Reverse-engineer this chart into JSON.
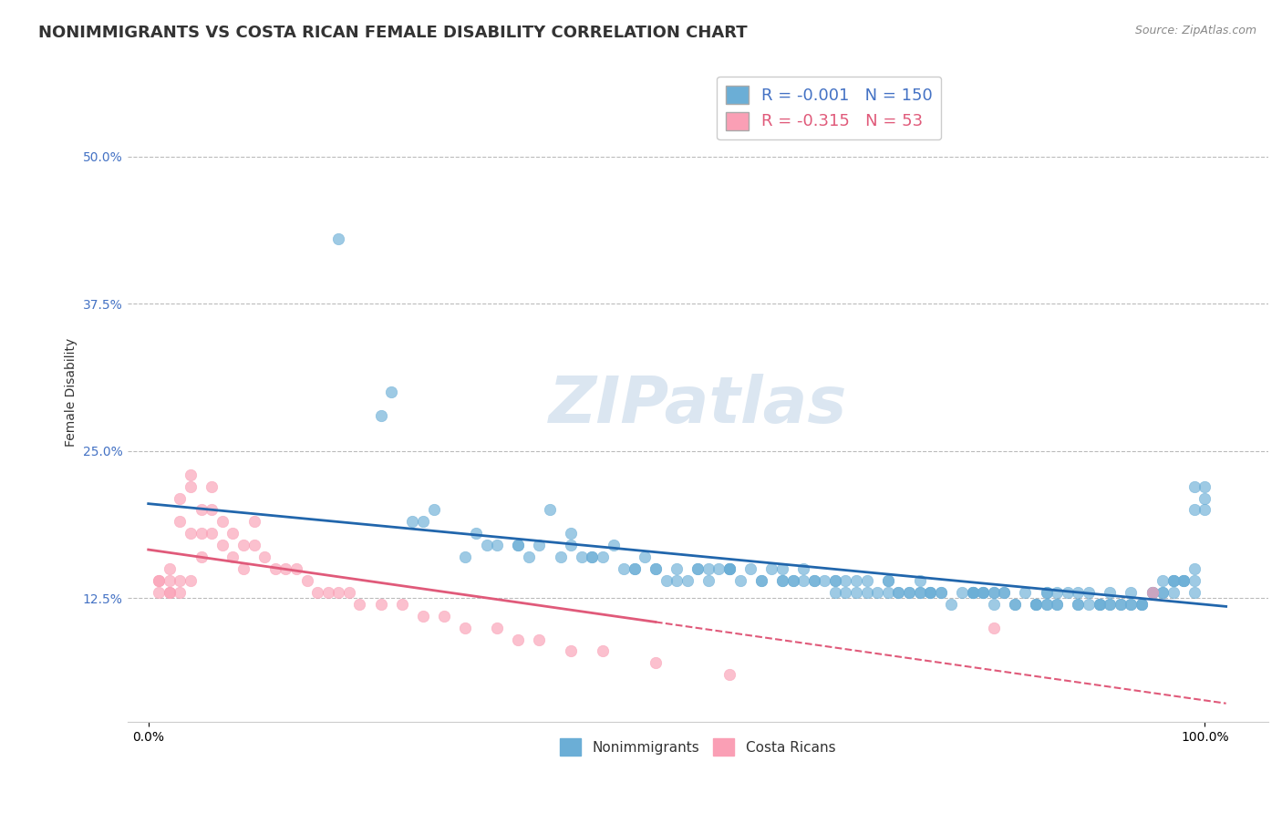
{
  "title": "NONIMMIGRANTS VS COSTA RICAN FEMALE DISABILITY CORRELATION CHART",
  "source_text": "Source: ZipAtlas.com",
  "ylabel": "Female Disability",
  "x_tick_labels": [
    "0.0%",
    "100.0%"
  ],
  "y_tick_labels": [
    "12.5%",
    "25.0%",
    "37.5%",
    "50.0%"
  ],
  "y_tick_values": [
    0.125,
    0.25,
    0.375,
    0.5
  ],
  "xlim": [
    -0.02,
    1.06
  ],
  "ylim": [
    0.02,
    0.58
  ],
  "legend_blue_r": "-0.001",
  "legend_blue_n": "150",
  "legend_pink_r": "-0.315",
  "legend_pink_n": "53",
  "blue_color": "#6baed6",
  "pink_color": "#fa9fb5",
  "blue_line_color": "#2166ac",
  "pink_line_color": "#e05a7a",
  "watermark_text": "ZIPatlas",
  "title_fontsize": 13,
  "label_fontsize": 10,
  "tick_fontsize": 10,
  "source_fontsize": 9,
  "blue_scatter_x": [
    0.18,
    0.23,
    0.22,
    0.27,
    0.26,
    0.31,
    0.35,
    0.38,
    0.36,
    0.4,
    0.42,
    0.44,
    0.46,
    0.47,
    0.48,
    0.5,
    0.52,
    0.53,
    0.55,
    0.57,
    0.58,
    0.59,
    0.6,
    0.62,
    0.63,
    0.64,
    0.65,
    0.66,
    0.67,
    0.68,
    0.69,
    0.7,
    0.71,
    0.72,
    0.73,
    0.74,
    0.75,
    0.76,
    0.77,
    0.78,
    0.79,
    0.8,
    0.81,
    0.82,
    0.83,
    0.84,
    0.85,
    0.86,
    0.87,
    0.88,
    0.89,
    0.9,
    0.91,
    0.92,
    0.93,
    0.94,
    0.95,
    0.96,
    0.97,
    0.98,
    0.99,
    1.0,
    0.3,
    0.33,
    0.37,
    0.41,
    0.43,
    0.45,
    0.49,
    0.51,
    0.54,
    0.56,
    0.61,
    0.74,
    0.78,
    0.82,
    0.86,
    0.9,
    0.94,
    0.97,
    0.35,
    0.4,
    0.48,
    0.55,
    0.6,
    0.65,
    0.7,
    0.75,
    0.8,
    0.85,
    0.88,
    0.92,
    0.95,
    0.98,
    1.0,
    0.25,
    0.32,
    0.39,
    0.46,
    0.53,
    0.6,
    0.67,
    0.73,
    0.79,
    0.84,
    0.89,
    0.93,
    0.96,
    0.99,
    0.5,
    0.55,
    0.62,
    0.68,
    0.74,
    0.8,
    0.86,
    0.91,
    0.95,
    0.98,
    1.0,
    0.42,
    0.52,
    0.61,
    0.7,
    0.78,
    0.85,
    0.91,
    0.96,
    0.99,
    0.65,
    0.72,
    0.79,
    0.85,
    0.9,
    0.94,
    0.97,
    0.99,
    0.58,
    0.66,
    0.73,
    0.81,
    0.88,
    0.93,
    0.97,
    0.99,
    0.55,
    0.63,
    0.71,
    0.78,
    0.84
  ],
  "blue_scatter_y": [
    0.43,
    0.3,
    0.28,
    0.2,
    0.19,
    0.18,
    0.17,
    0.2,
    0.16,
    0.18,
    0.16,
    0.17,
    0.15,
    0.16,
    0.15,
    0.14,
    0.15,
    0.14,
    0.15,
    0.15,
    0.14,
    0.15,
    0.14,
    0.15,
    0.14,
    0.14,
    0.13,
    0.14,
    0.13,
    0.13,
    0.13,
    0.13,
    0.13,
    0.13,
    0.14,
    0.13,
    0.13,
    0.12,
    0.13,
    0.13,
    0.13,
    0.12,
    0.13,
    0.12,
    0.13,
    0.12,
    0.13,
    0.12,
    0.13,
    0.12,
    0.13,
    0.12,
    0.13,
    0.12,
    0.13,
    0.12,
    0.13,
    0.14,
    0.13,
    0.14,
    0.13,
    0.21,
    0.16,
    0.17,
    0.17,
    0.16,
    0.16,
    0.15,
    0.14,
    0.14,
    0.15,
    0.14,
    0.14,
    0.13,
    0.13,
    0.12,
    0.13,
    0.12,
    0.12,
    0.14,
    0.17,
    0.17,
    0.15,
    0.15,
    0.15,
    0.14,
    0.14,
    0.13,
    0.13,
    0.12,
    0.13,
    0.12,
    0.13,
    0.14,
    0.22,
    0.19,
    0.17,
    0.16,
    0.15,
    0.15,
    0.14,
    0.14,
    0.13,
    0.13,
    0.12,
    0.12,
    0.12,
    0.13,
    0.14,
    0.15,
    0.15,
    0.14,
    0.14,
    0.13,
    0.13,
    0.12,
    0.12,
    0.13,
    0.14,
    0.2,
    0.16,
    0.15,
    0.14,
    0.14,
    0.13,
    0.13,
    0.12,
    0.13,
    0.15,
    0.14,
    0.13,
    0.13,
    0.12,
    0.12,
    0.12,
    0.14,
    0.2,
    0.14,
    0.13,
    0.13,
    0.13,
    0.12,
    0.12,
    0.14,
    0.22,
    0.15,
    0.14,
    0.13,
    0.13,
    0.12
  ],
  "pink_scatter_x": [
    0.01,
    0.01,
    0.01,
    0.02,
    0.02,
    0.02,
    0.02,
    0.03,
    0.03,
    0.03,
    0.03,
    0.04,
    0.04,
    0.04,
    0.04,
    0.05,
    0.05,
    0.05,
    0.06,
    0.06,
    0.06,
    0.07,
    0.07,
    0.08,
    0.08,
    0.09,
    0.09,
    0.1,
    0.1,
    0.11,
    0.12,
    0.13,
    0.14,
    0.15,
    0.16,
    0.17,
    0.18,
    0.19,
    0.2,
    0.22,
    0.24,
    0.26,
    0.28,
    0.3,
    0.33,
    0.35,
    0.37,
    0.4,
    0.43,
    0.48,
    0.55,
    0.8,
    0.95
  ],
  "pink_scatter_y": [
    0.14,
    0.14,
    0.13,
    0.15,
    0.14,
    0.13,
    0.13,
    0.21,
    0.19,
    0.14,
    0.13,
    0.23,
    0.22,
    0.18,
    0.14,
    0.2,
    0.18,
    0.16,
    0.22,
    0.2,
    0.18,
    0.19,
    0.17,
    0.18,
    0.16,
    0.17,
    0.15,
    0.19,
    0.17,
    0.16,
    0.15,
    0.15,
    0.15,
    0.14,
    0.13,
    0.13,
    0.13,
    0.13,
    0.12,
    0.12,
    0.12,
    0.11,
    0.11,
    0.1,
    0.1,
    0.09,
    0.09,
    0.08,
    0.08,
    0.07,
    0.06,
    0.1,
    0.13
  ]
}
